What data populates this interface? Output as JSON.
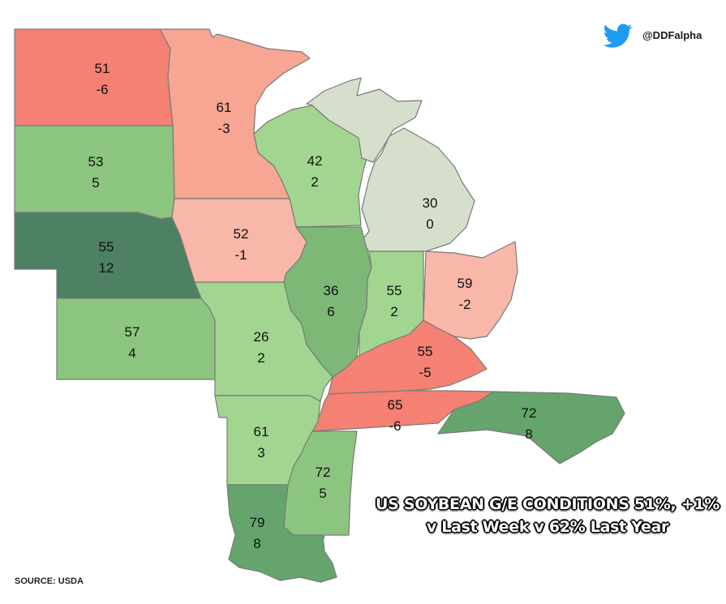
{
  "brand": {
    "handle": "@DDFalpha"
  },
  "headline": {
    "line1": "US SOYBEAN G/E CONDITIONS 51%, +1%",
    "line2": "v Last Week v 62% Last Year"
  },
  "source": "SOURCE: USDA",
  "colors": {
    "strong_negative": "#f48173",
    "mild_negative": "#f6a693",
    "slight_negative": "#f9b7aa",
    "neutral": "#d5dfcb",
    "light_positive": "#a2d690",
    "mid_positive": "#8cc57f",
    "dark_positive": "#66a46e",
    "darkest_positive": "#4e8064"
  },
  "states": [
    {
      "id": "north-dakota",
      "value": "51",
      "change": "-6"
    },
    {
      "id": "minnesota",
      "value": "61",
      "change": "-3"
    },
    {
      "id": "south-dakota",
      "value": "53",
      "change": "5"
    },
    {
      "id": "wisconsin",
      "value": "42",
      "change": "2"
    },
    {
      "id": "michigan",
      "value": "30",
      "change": "0"
    },
    {
      "id": "nebraska",
      "value": "55",
      "change": "12"
    },
    {
      "id": "iowa",
      "value": "52",
      "change": "-1"
    },
    {
      "id": "illinois",
      "value": "36",
      "change": "6"
    },
    {
      "id": "indiana",
      "value": "55",
      "change": "2"
    },
    {
      "id": "ohio",
      "value": "59",
      "change": "-2"
    },
    {
      "id": "kansas",
      "value": "57",
      "change": "4"
    },
    {
      "id": "missouri",
      "value": "26",
      "change": "2"
    },
    {
      "id": "kentucky",
      "value": "55",
      "change": "-5"
    },
    {
      "id": "tennessee",
      "value": "65",
      "change": "-6"
    },
    {
      "id": "north-carolina",
      "value": "72",
      "change": "8"
    },
    {
      "id": "arkansas",
      "value": "61",
      "change": "3"
    },
    {
      "id": "mississippi",
      "value": "72",
      "change": "5"
    },
    {
      "id": "louisiana",
      "value": "79",
      "change": "8"
    }
  ]
}
